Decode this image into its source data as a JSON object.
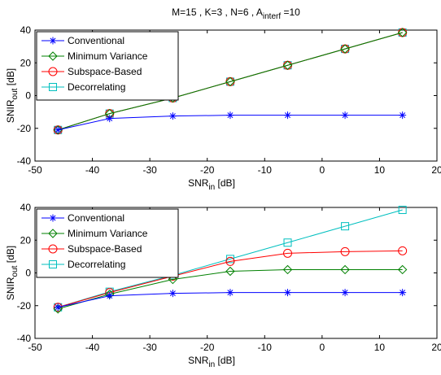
{
  "chart_data": [
    {
      "type": "line",
      "title": "M=15 , K=3 , N=6 , A_interf =10",
      "title_parts": {
        "pre": "M=15 , K=3 , N=6 , A",
        "sub": "interf",
        "post": " =10"
      },
      "xlabel": {
        "main": "SNR",
        "sub": "in",
        "unit": " [dB]"
      },
      "ylabel": {
        "main": "SNIR",
        "sub": "out",
        "unit": " [dB]"
      },
      "xlim": [
        -50,
        20
      ],
      "ylim": [
        -40,
        40
      ],
      "xticks": [
        -50,
        -40,
        -30,
        -20,
        -10,
        0,
        10,
        20
      ],
      "yticks": [
        -40,
        -20,
        0,
        20,
        40
      ],
      "x": [
        -46,
        -37,
        -26,
        -16,
        -6,
        4,
        14
      ],
      "grid": false,
      "legend_position": "top-left",
      "series": [
        {
          "name": "Conventional",
          "color": "#0000ff",
          "marker": "star",
          "values": [
            -21,
            -14,
            -12.5,
            -12,
            -12,
            -12,
            -12
          ]
        },
        {
          "name": "Minimum Variance",
          "color": "#008000",
          "marker": "diamond",
          "values": [
            -21,
            -11,
            -1.5,
            8.5,
            18.5,
            28.5,
            38.5
          ]
        },
        {
          "name": "Subspace-Based",
          "color": "#ff0000",
          "marker": "circle",
          "values": [
            -21,
            -11,
            -1.5,
            8.5,
            18.5,
            28.5,
            38.5
          ]
        },
        {
          "name": "Decorrelating",
          "color": "#00bfbf",
          "marker": "square",
          "values": [
            -21,
            -11,
            -1.5,
            8.5,
            18.5,
            28.5,
            38.5
          ]
        }
      ]
    },
    {
      "type": "line",
      "xlabel": {
        "main": "SNR",
        "sub": "in",
        "unit": " [dB]"
      },
      "ylabel": {
        "main": "SNIR",
        "sub": "out",
        "unit": " [dB]"
      },
      "xlim": [
        -50,
        20
      ],
      "ylim": [
        -40,
        40
      ],
      "xticks": [
        -50,
        -40,
        -30,
        -20,
        -10,
        0,
        10,
        20
      ],
      "yticks": [
        -40,
        -20,
        0,
        20,
        40
      ],
      "x": [
        -46,
        -37,
        -26,
        -16,
        -6,
        4,
        14
      ],
      "grid": false,
      "legend_position": "top-left",
      "series": [
        {
          "name": "Conventional",
          "color": "#0000ff",
          "marker": "star",
          "values": [
            -21,
            -14,
            -12.5,
            -12,
            -12,
            -12,
            -12
          ]
        },
        {
          "name": "Minimum Variance",
          "color": "#008000",
          "marker": "diamond",
          "values": [
            -22,
            -13,
            -4,
            1,
            2,
            2,
            2
          ]
        },
        {
          "name": "Subspace-Based",
          "color": "#ff0000",
          "marker": "circle",
          "values": [
            -21,
            -12,
            -2,
            7,
            12,
            13,
            13.5
          ]
        },
        {
          "name": "Decorrelating",
          "color": "#00bfbf",
          "marker": "square",
          "values": [
            -21,
            -11.5,
            -1.5,
            8.5,
            18.5,
            28.5,
            38.5
          ]
        }
      ]
    }
  ]
}
